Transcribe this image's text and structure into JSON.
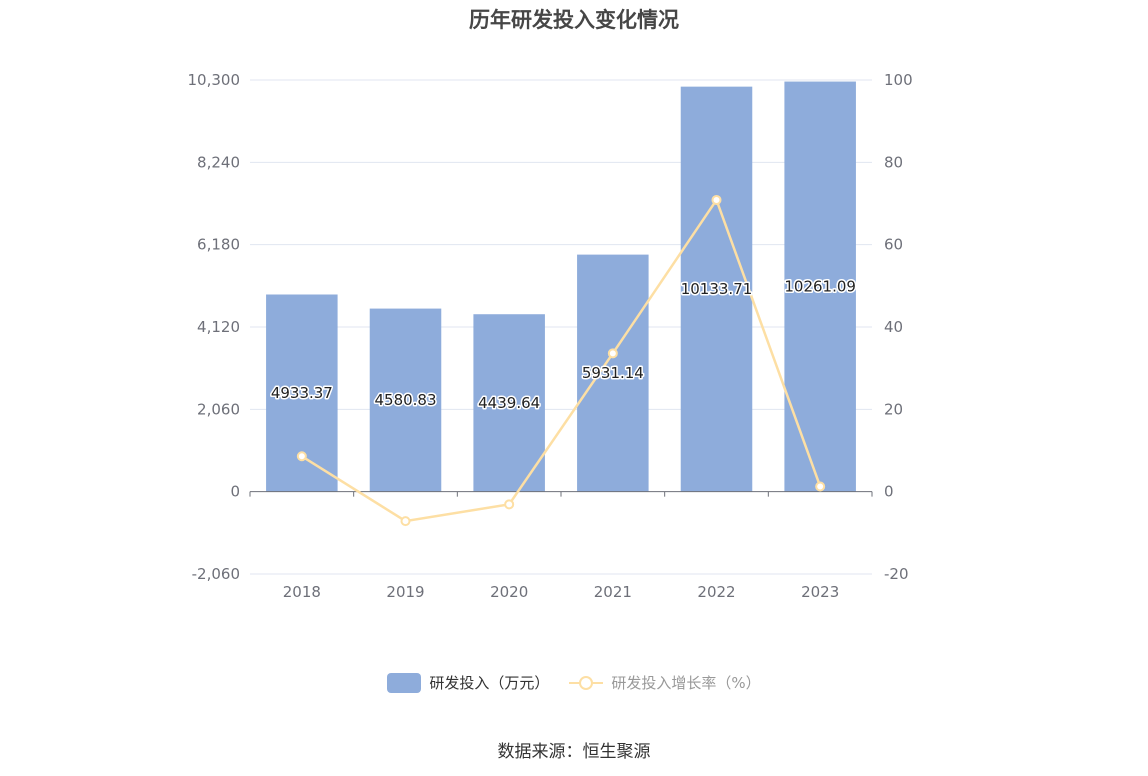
{
  "title": "历年研发投入变化情况",
  "source": "数据来源：恒生聚源",
  "colors": {
    "bar": "#8eacdb",
    "line": "#fddfa4",
    "grid": "#e0e6f1",
    "axis": "#6e7079"
  },
  "chart_data": {
    "type": "bar",
    "categories": [
      "2018",
      "2019",
      "2020",
      "2021",
      "2022",
      "2023"
    ],
    "series": [
      {
        "name": "研发投入（万元）",
        "type": "bar",
        "axis": "left",
        "values": [
          4933.37,
          4580.83,
          4439.64,
          5931.14,
          10133.71,
          10261.09
        ]
      },
      {
        "name": "研发投入增长率（%）",
        "type": "line",
        "axis": "right",
        "values": [
          8.6,
          -7.15,
          -3.08,
          33.6,
          70.86,
          1.26
        ]
      }
    ],
    "left_axis": {
      "min": -2060,
      "max": 10300,
      "ticks": [
        -2060,
        0,
        2060,
        4120,
        6180,
        8240,
        10300
      ],
      "tick_labels": [
        "-2,060",
        "0",
        "2,060",
        "4,120",
        "6,180",
        "8,240",
        "10,300"
      ]
    },
    "right_axis": {
      "min": -20,
      "max": 100,
      "ticks": [
        -20,
        0,
        20,
        40,
        60,
        80,
        100
      ],
      "tick_labels": [
        "-20",
        "0",
        "20",
        "40",
        "60",
        "80",
        "100"
      ]
    },
    "bar_labels": [
      "4933.37",
      "4580.83",
      "4439.64",
      "5931.14",
      "10133.71",
      "10261.09"
    ],
    "grid": true,
    "legend_position": "bottom-center"
  }
}
